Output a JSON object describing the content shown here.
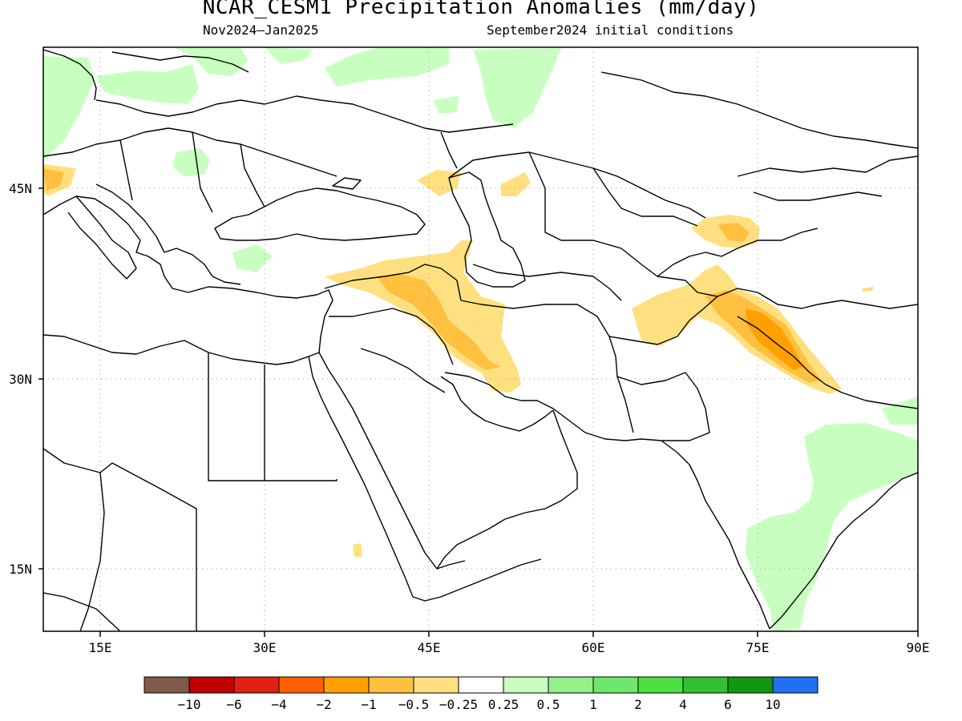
{
  "title": "NCAR_CESM1 Precipitation Anomalies (mm/day)",
  "subtitle_left": "Nov2024–Jan2025",
  "subtitle_right": "September2024 initial conditions",
  "axes": {
    "lat_labels": [
      "45N",
      "30N",
      "15N"
    ],
    "lon_labels": [
      "15E",
      "30E",
      "45E",
      "60E",
      "75E",
      "90E"
    ]
  },
  "colorbar": {
    "colors": [
      "#7f5a4a",
      "#c00000",
      "#e02010",
      "#ff6000",
      "#ffa000",
      "#ffc040",
      "#ffe080",
      "#ffffff",
      "#c8ffc0",
      "#96f08c",
      "#6ee86a",
      "#4ce040",
      "#30c030",
      "#109810",
      "#2070f0"
    ],
    "labels": [
      "−10",
      "−6",
      "−4",
      "−2",
      "−1",
      "−0.5",
      "−0.25",
      "0.25",
      "0.5",
      "1",
      "2",
      "4",
      "6",
      "10"
    ]
  },
  "anomaly_colors": {
    "light_green": "#c8ffc0",
    "mid_green": "#96f08c",
    "light_orange": "#ffe080",
    "mid_orange": "#ffc040",
    "dark_orange": "#ffa000"
  }
}
